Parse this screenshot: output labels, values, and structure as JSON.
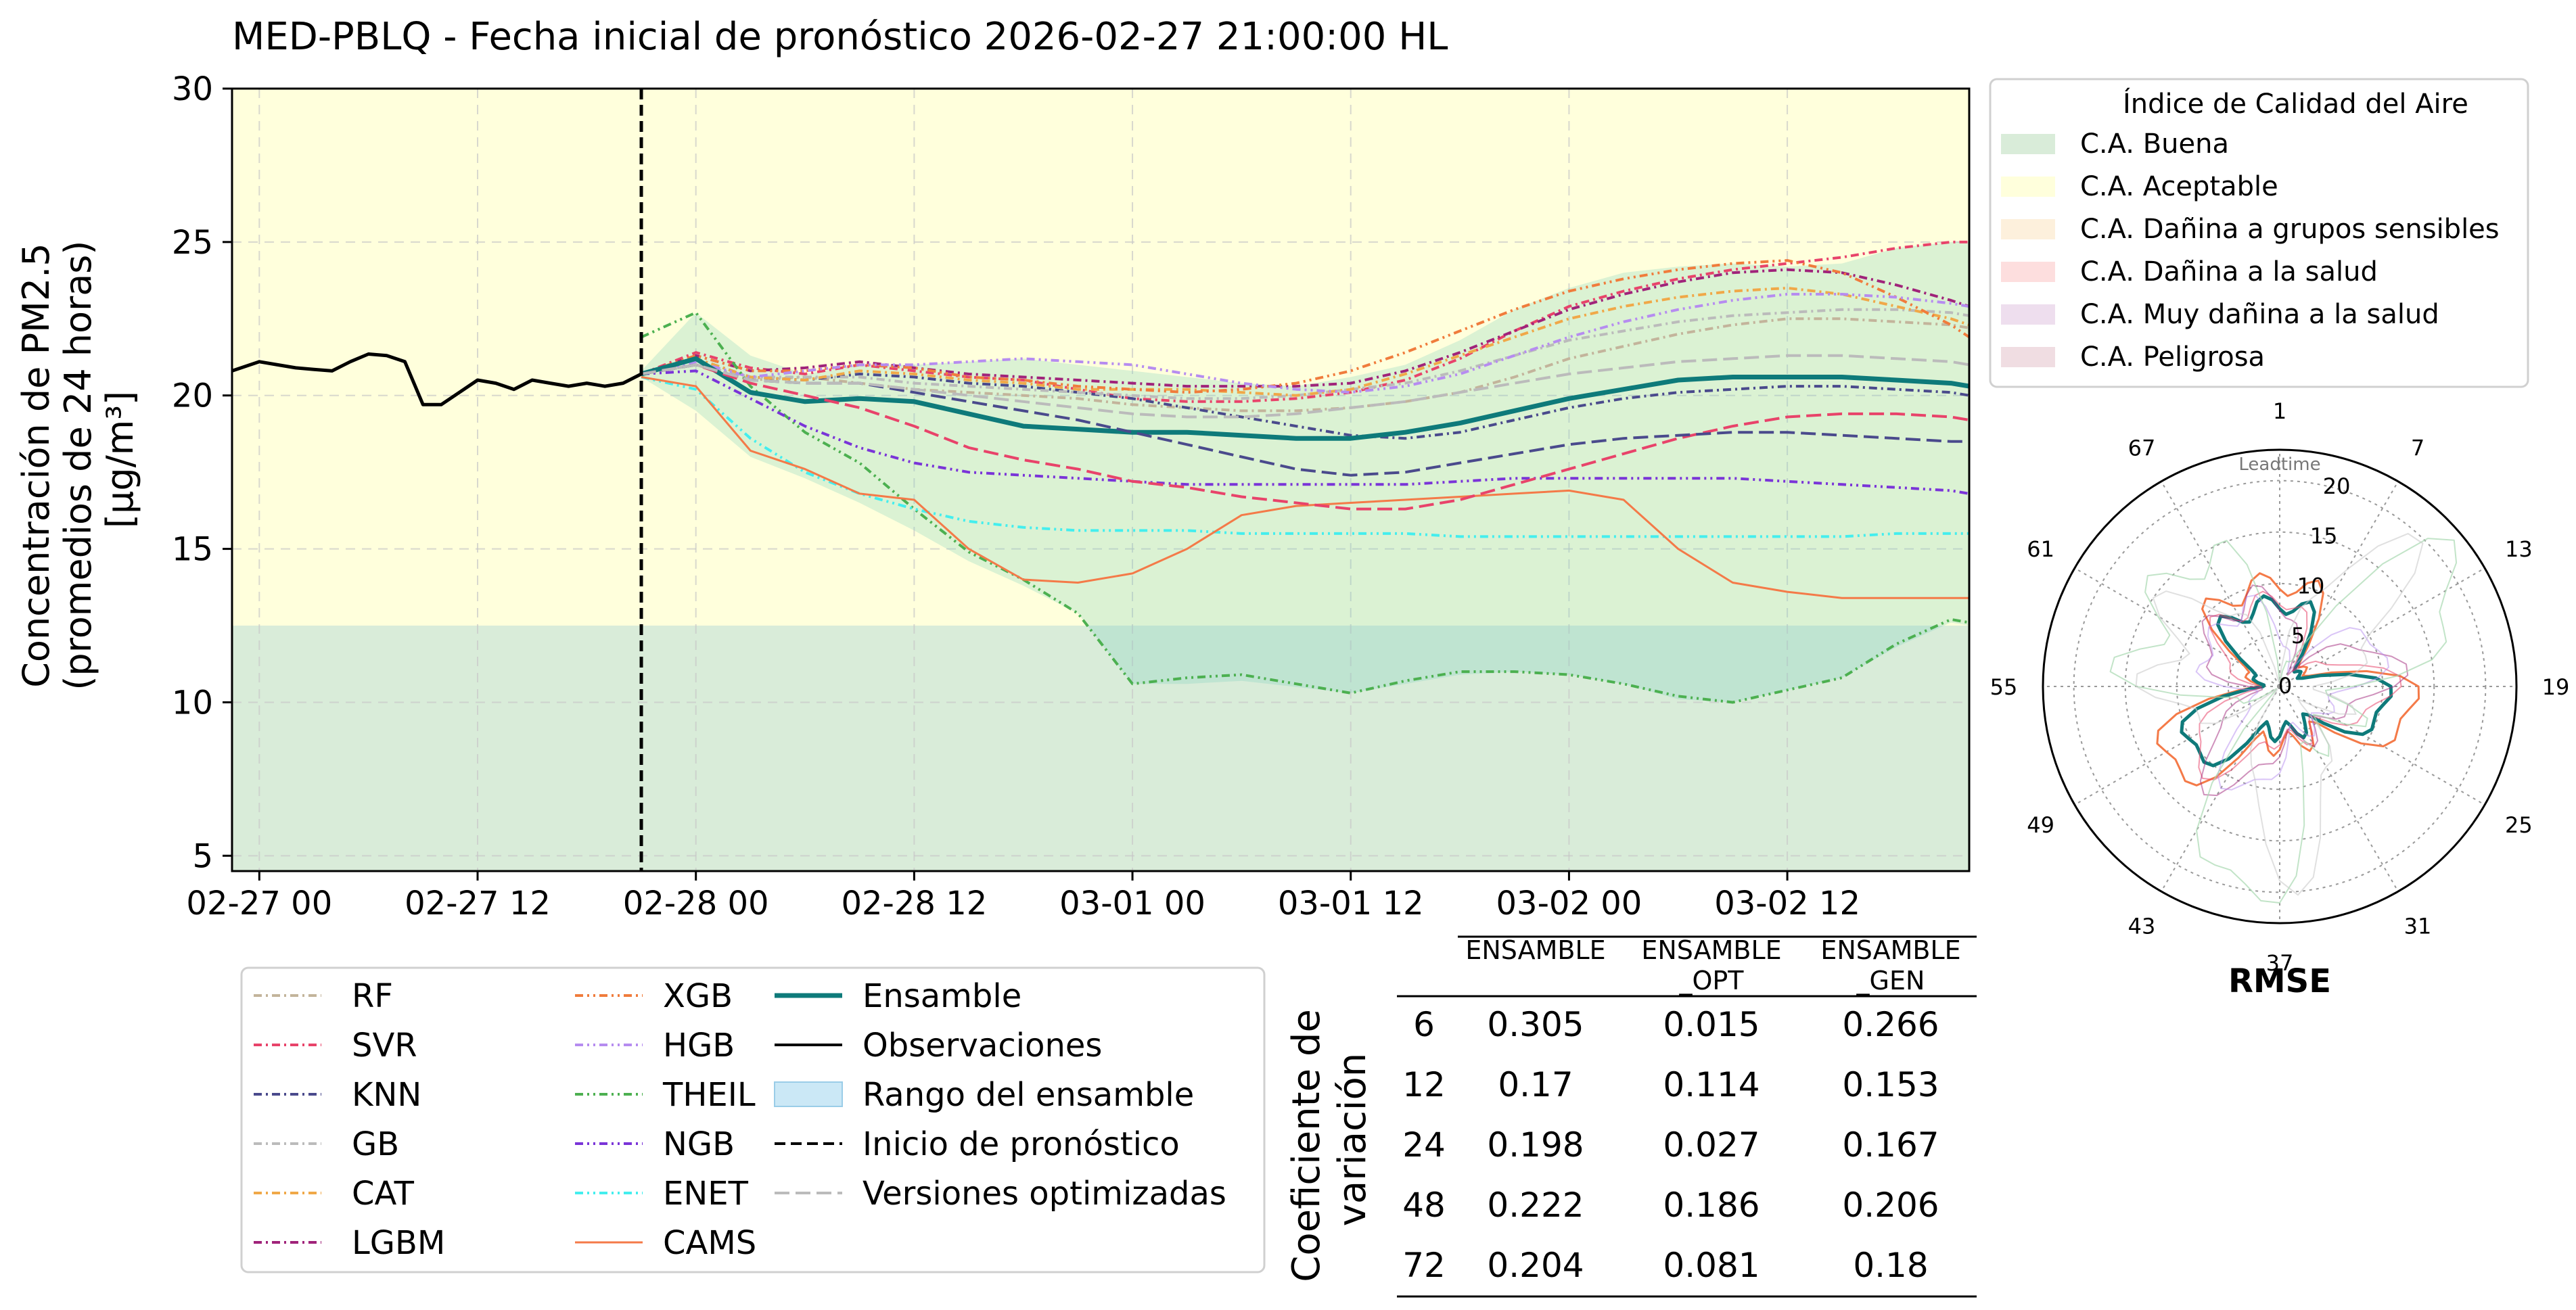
{
  "title": "MED-PBLQ - Fecha inicial de pronóstico 2026-02-27 21:00:00 HL",
  "chart_data": [
    {
      "type": "line",
      "ylabel": [
        "Concentración de PM2.5",
        "(promedios de 24 horas)",
        "[μg/m³]"
      ],
      "ylim": [
        4.5,
        30
      ],
      "yticks": [
        5,
        10,
        15,
        20,
        25,
        30
      ],
      "xlim": [
        -1.5,
        94
      ],
      "xticks": [
        {
          "h": 0,
          "label": "02-27 00"
        },
        {
          "h": 12,
          "label": "02-27 12"
        },
        {
          "h": 24,
          "label": "02-28 00"
        },
        {
          "h": 36,
          "label": "02-28 12"
        },
        {
          "h": 48,
          "label": "03-01 00"
        },
        {
          "h": 60,
          "label": "03-01 12"
        },
        {
          "h": 72,
          "label": "03-02 00"
        },
        {
          "h": 84,
          "label": "03-02 12"
        }
      ],
      "grid": true,
      "forecast_start_h": 21,
      "aqi_bands": [
        {
          "name": "C.A. Buena",
          "from": 0,
          "to": 12.5,
          "color": "#d9ecd9"
        },
        {
          "name": "C.A. Aceptable",
          "from": 12.5,
          "to": 30,
          "color": "#ffffdc"
        }
      ],
      "observations": {
        "name": "Observaciones",
        "x": [
          -1.5,
          0,
          1,
          2,
          3,
          4,
          5,
          6,
          7,
          8,
          9,
          10,
          11,
          12,
          13,
          14,
          15,
          16,
          17,
          18,
          19,
          20,
          21
        ],
        "y": [
          20.8,
          21.1,
          21.0,
          20.9,
          20.85,
          20.8,
          21.1,
          21.35,
          21.3,
          21.1,
          19.7,
          19.7,
          20.1,
          20.5,
          20.4,
          20.2,
          20.5,
          20.4,
          20.3,
          20.4,
          20.3,
          20.4,
          20.7
        ]
      },
      "ensemble_range": {
        "name": "Rango del ensamble",
        "x": [
          21,
          24,
          27,
          30,
          33,
          36,
          39,
          42,
          45,
          48,
          51,
          54,
          57,
          60,
          63,
          66,
          69,
          72,
          75,
          78,
          81,
          84,
          87,
          90,
          93,
          94
        ],
        "upper": [
          20.8,
          22.7,
          21.3,
          20.7,
          21.0,
          21.0,
          21.1,
          21.2,
          21.0,
          20.8,
          20.6,
          20.4,
          20.3,
          20.6,
          21.0,
          21.8,
          22.8,
          23.5,
          24.0,
          24.2,
          24.3,
          24.2,
          24.3,
          24.8,
          25.0,
          25.0
        ],
        "lower": [
          20.6,
          19.5,
          18.0,
          17.3,
          16.5,
          15.6,
          14.6,
          13.8,
          12.9,
          10.6,
          10.6,
          10.7,
          10.5,
          10.3,
          10.6,
          10.9,
          11.0,
          10.9,
          10.6,
          10.1,
          10.0,
          10.4,
          10.8,
          11.8,
          12.6,
          12.5
        ]
      },
      "series": [
        {
          "name": "RF",
          "color": "#c3b49b",
          "dash": "12,6,3,6",
          "width": 4,
          "y": [
            20.7,
            21.0,
            20.5,
            20.6,
            20.4,
            20.2,
            20.1,
            20.0,
            19.9,
            19.7,
            19.6,
            19.5,
            19.5,
            19.6,
            19.8,
            20.1,
            20.6,
            21.2,
            21.6,
            22.0,
            22.3,
            22.5,
            22.5,
            22.4,
            22.3,
            22.2
          ]
        },
        {
          "name": "SVR",
          "color": "#e8436a",
          "dash": "12,6,3,6",
          "width": 4,
          "y": [
            20.7,
            21.4,
            20.9,
            20.7,
            21.0,
            20.8,
            20.6,
            20.5,
            20.2,
            19.9,
            19.8,
            19.8,
            19.9,
            20.1,
            20.5,
            21.2,
            22.1,
            22.9,
            23.4,
            23.8,
            24.1,
            24.3,
            24.5,
            24.8,
            25.0,
            25.0
          ]
        },
        {
          "name": "KNN",
          "color": "#4a4a8c",
          "dash": "12,6,3,6",
          "width": 4,
          "y": [
            20.7,
            21.2,
            20.6,
            20.5,
            20.7,
            20.6,
            20.4,
            20.3,
            20.1,
            19.9,
            19.6,
            19.3,
            19.0,
            18.7,
            18.6,
            18.8,
            19.2,
            19.6,
            19.9,
            20.1,
            20.2,
            20.3,
            20.3,
            20.2,
            20.1,
            20.0
          ]
        },
        {
          "name": "GB",
          "color": "#bbbbbb",
          "dash": "12,6,3,6",
          "width": 4,
          "y": [
            20.7,
            21.0,
            20.6,
            20.6,
            20.6,
            20.4,
            20.3,
            20.2,
            20.1,
            20.0,
            19.9,
            19.9,
            20.0,
            20.2,
            20.4,
            20.8,
            21.3,
            21.8,
            22.1,
            22.4,
            22.6,
            22.7,
            22.8,
            22.8,
            22.7,
            22.6
          ]
        },
        {
          "name": "CAT",
          "color": "#f0a848",
          "dash": "12,6,3,6",
          "width": 4,
          "y": [
            20.7,
            21.2,
            20.6,
            20.5,
            20.8,
            20.7,
            20.5,
            20.4,
            20.2,
            20.2,
            20.2,
            20.1,
            20.0,
            20.2,
            20.7,
            21.3,
            21.9,
            22.5,
            22.9,
            23.2,
            23.4,
            23.5,
            23.3,
            22.9,
            22.5,
            22.3
          ]
        },
        {
          "name": "LGBM",
          "color": "#a0237a",
          "dash": "12,6,3,6",
          "width": 4,
          "y": [
            20.7,
            21.3,
            20.8,
            20.9,
            21.1,
            20.9,
            20.7,
            20.6,
            20.5,
            20.4,
            20.3,
            20.3,
            20.3,
            20.4,
            20.8,
            21.4,
            22.1,
            22.8,
            23.3,
            23.7,
            24.0,
            24.1,
            24.0,
            23.6,
            23.1,
            22.9
          ]
        },
        {
          "name": "XGB",
          "color": "#f07c3c",
          "dash": "12,6,3,6,3,6",
          "width": 4,
          "y": [
            20.7,
            21.3,
            20.8,
            20.8,
            21.0,
            20.9,
            20.6,
            20.5,
            20.3,
            20.2,
            20.1,
            20.2,
            20.4,
            20.8,
            21.4,
            22.1,
            22.8,
            23.4,
            23.8,
            24.1,
            24.3,
            24.4,
            24.0,
            23.2,
            22.3,
            21.9
          ]
        },
        {
          "name": "HGB",
          "color": "#b68cf0",
          "dash": "12,6,3,6,3,6",
          "width": 4,
          "y": [
            20.7,
            21.1,
            20.6,
            20.8,
            21.0,
            21.0,
            21.1,
            21.2,
            21.1,
            21.0,
            20.7,
            20.4,
            20.2,
            20.1,
            20.3,
            20.7,
            21.3,
            21.9,
            22.4,
            22.8,
            23.1,
            23.3,
            23.3,
            23.2,
            23.0,
            22.9
          ]
        },
        {
          "name": "THEIL",
          "color": "#4cb050",
          "dash": "12,6,3,6,3,6",
          "width": 4,
          "y": [
            21.9,
            22.7,
            20.3,
            18.8,
            17.8,
            16.3,
            14.9,
            14.0,
            12.9,
            10.6,
            10.8,
            10.9,
            10.6,
            10.3,
            10.7,
            11.0,
            11.0,
            10.9,
            10.6,
            10.2,
            10.0,
            10.4,
            10.8,
            11.9,
            12.7,
            12.6
          ]
        },
        {
          "name": "NGB",
          "color": "#7a34d8",
          "dash": "12,6,3,6,3,6",
          "width": 4,
          "y": [
            20.7,
            20.8,
            19.9,
            19.0,
            18.3,
            17.8,
            17.5,
            17.4,
            17.3,
            17.2,
            17.1,
            17.1,
            17.1,
            17.1,
            17.1,
            17.2,
            17.3,
            17.3,
            17.3,
            17.3,
            17.3,
            17.2,
            17.1,
            17.0,
            16.9,
            16.8
          ]
        },
        {
          "name": "ENET",
          "color": "#44eeee",
          "dash": "12,6,3,6,3,6",
          "width": 4,
          "y": [
            20.6,
            20.2,
            18.6,
            17.5,
            16.8,
            16.3,
            15.9,
            15.7,
            15.6,
            15.6,
            15.6,
            15.5,
            15.5,
            15.5,
            15.5,
            15.4,
            15.4,
            15.4,
            15.4,
            15.4,
            15.4,
            15.4,
            15.4,
            15.5,
            15.5,
            15.5
          ]
        },
        {
          "name": "CAMS",
          "color": "#f47a48",
          "dash": "",
          "width": 3,
          "y": [
            20.6,
            20.3,
            18.2,
            17.6,
            16.8,
            16.6,
            15.0,
            14.0,
            13.9,
            14.2,
            15.0,
            16.1,
            16.4,
            16.5,
            16.6,
            16.7,
            16.8,
            16.9,
            16.6,
            15.0,
            13.9,
            13.6,
            13.4,
            13.4,
            13.4,
            13.4
          ]
        },
        {
          "name": "Ensamble",
          "color": "#0e7a7a",
          "dash": "",
          "width": 7,
          "y": [
            20.7,
            21.2,
            20.1,
            19.8,
            19.9,
            19.8,
            19.4,
            19.0,
            18.9,
            18.8,
            18.8,
            18.7,
            18.6,
            18.6,
            18.8,
            19.1,
            19.5,
            19.9,
            20.2,
            20.5,
            20.6,
            20.6,
            20.6,
            20.5,
            20.4,
            20.3
          ]
        },
        {
          "name": "SVR_OPT",
          "color": "#e8436a",
          "dash": "22,9",
          "width": 4,
          "y": [
            20.7,
            21.0,
            20.4,
            20.0,
            19.6,
            19.0,
            18.3,
            17.9,
            17.6,
            17.2,
            17.0,
            16.7,
            16.5,
            16.3,
            16.3,
            16.6,
            17.1,
            17.6,
            18.1,
            18.6,
            19.0,
            19.3,
            19.4,
            19.4,
            19.3,
            19.2
          ]
        },
        {
          "name": "KNN_OPT",
          "color": "#4a4a8c",
          "dash": "22,9",
          "width": 4,
          "y": [
            20.7,
            21.0,
            20.5,
            20.4,
            20.4,
            20.1,
            19.8,
            19.5,
            19.2,
            18.8,
            18.4,
            18.0,
            17.6,
            17.4,
            17.5,
            17.8,
            18.1,
            18.4,
            18.6,
            18.7,
            18.8,
            18.8,
            18.7,
            18.6,
            18.5,
            18.5
          ]
        },
        {
          "name": "GB_OPT",
          "color": "#bbbbbb",
          "dash": "22,9",
          "width": 4,
          "y": [
            20.7,
            21.0,
            20.5,
            20.4,
            20.4,
            20.2,
            20.0,
            19.8,
            19.6,
            19.4,
            19.3,
            19.3,
            19.4,
            19.6,
            19.8,
            20.1,
            20.4,
            20.7,
            20.9,
            21.1,
            21.2,
            21.3,
            21.3,
            21.2,
            21.1,
            21.0
          ]
        }
      ],
      "rmse_table": {
        "ylabel": [
          "Coeficiente de",
          "variación"
        ],
        "columns": [
          [
            "ENSAMBLE"
          ],
          [
            "ENSAMBLE",
            "_OPT"
          ],
          [
            "ENSAMBLE",
            "_GEN"
          ]
        ],
        "rows": [
          {
            "label": "6",
            "values": [
              "0.305",
              "0.015",
              "0.266"
            ]
          },
          {
            "label": "12",
            "values": [
              "0.17",
              "0.114",
              "0.153"
            ]
          },
          {
            "label": "24",
            "values": [
              "0.198",
              "0.027",
              "0.167"
            ]
          },
          {
            "label": "48",
            "values": [
              "0.222",
              "0.186",
              "0.206"
            ]
          },
          {
            "label": "72",
            "values": [
              "0.204",
              "0.081",
              "0.18"
            ]
          }
        ]
      },
      "legend": [
        {
          "name": "RF",
          "color": "#c3b49b",
          "dash": "12,6,3,6",
          "width": 4
        },
        {
          "name": "SVR",
          "color": "#e8436a",
          "dash": "12,6,3,6",
          "width": 4
        },
        {
          "name": "KNN",
          "color": "#4a4a8c",
          "dash": "12,6,3,6",
          "width": 4
        },
        {
          "name": "GB",
          "color": "#bbbbbb",
          "dash": "12,6,3,6",
          "width": 4
        },
        {
          "name": "CAT",
          "color": "#f0a848",
          "dash": "12,6,3,6",
          "width": 4
        },
        {
          "name": "LGBM",
          "color": "#a0237a",
          "dash": "12,6,3,6",
          "width": 4
        },
        {
          "name": "XGB",
          "color": "#f07c3c",
          "dash": "12,6,3,6,3,6",
          "width": 4
        },
        {
          "name": "HGB",
          "color": "#b68cf0",
          "dash": "12,6,3,6,3,6",
          "width": 4
        },
        {
          "name": "THEIL",
          "color": "#4cb050",
          "dash": "12,6,3,6,3,6",
          "width": 4
        },
        {
          "name": "NGB",
          "color": "#7a34d8",
          "dash": "12,6,3,6,3,6",
          "width": 4
        },
        {
          "name": "ENET",
          "color": "#44eeee",
          "dash": "12,6,3,6,3,6",
          "width": 4
        },
        {
          "name": "CAMS",
          "color": "#f47a48",
          "dash": "",
          "width": 3
        },
        {
          "name": "Ensamble",
          "color": "#0e7a7a",
          "dash": "",
          "width": 7
        },
        {
          "name": "Observaciones",
          "color": "#000000",
          "dash": "",
          "width": 4
        },
        {
          "name": "Rango del ensamble",
          "color": "#a8d8f0",
          "dash": "",
          "width": 0,
          "patch": true
        },
        {
          "name": "Inicio de pronóstico",
          "color": "#000000",
          "dash": "16,8",
          "width": 4
        },
        {
          "name": "Versiones optimizadas",
          "color": "#bbbbbb",
          "dash": "22,9",
          "width": 4
        }
      ],
      "aqi_legend": {
        "title": "Índice de Calidad del Aire",
        "items": [
          {
            "name": "C.A. Buena",
            "color": "#d9ecd9"
          },
          {
            "name": "C.A. Aceptable",
            "color": "#ffffdc"
          },
          {
            "name": "C.A. Dañina a grupos sensibles",
            "color": "#fdf0dc"
          },
          {
            "name": "C.A. Dañina a la salud",
            "color": "#fddede"
          },
          {
            "name": "C.A. Muy dañina a la salud",
            "color": "#eedeee"
          },
          {
            "name": "C.A. Peligrosa",
            "color": "#f0dde2"
          }
        ]
      }
    },
    {
      "type": "radar",
      "title": "RMSE",
      "axis_label": "Leadtime",
      "rlim": [
        0,
        23
      ],
      "rticks": [
        0,
        5,
        10,
        15,
        20
      ],
      "angle_labels": [
        "1",
        "7",
        "13",
        "19",
        "25",
        "31",
        "37",
        "43",
        "49",
        "55",
        "61",
        "67"
      ],
      "n_points": 72,
      "series": [
        {
          "name": "CAMS",
          "color": "#f47a48",
          "width": 3,
          "opacity": 1,
          "base": 7.8,
          "amp": 4.2,
          "phase": 0.6
        },
        {
          "name": "Ensamble",
          "color": "#0e7a7a",
          "width": 5,
          "opacity": 1,
          "base": 6.2,
          "amp": 3.4,
          "phase": 0.6
        },
        {
          "name": "SVR",
          "color": "#e8436a",
          "width": 2,
          "opacity": 0.55,
          "base": 6.8,
          "amp": 3.0,
          "phase": 1.1
        },
        {
          "name": "LGBM",
          "color": "#a0237a",
          "width": 2,
          "opacity": 0.5,
          "base": 7.1,
          "amp": 3.2,
          "phase": 1.7
        },
        {
          "name": "HGB",
          "color": "#b68cf0",
          "width": 2,
          "opacity": 0.5,
          "base": 6.5,
          "amp": 3.1,
          "phase": 2.3
        },
        {
          "name": "THEIL",
          "color": "#a8d8b0",
          "width": 2,
          "opacity": 0.7,
          "base": 10.5,
          "amp": 7.5,
          "phase": 2.9
        },
        {
          "name": "GB",
          "color": "#cccccc",
          "width": 2,
          "opacity": 0.6,
          "base": 8.6,
          "amp": 6.5,
          "phase": 3.7
        }
      ]
    }
  ]
}
